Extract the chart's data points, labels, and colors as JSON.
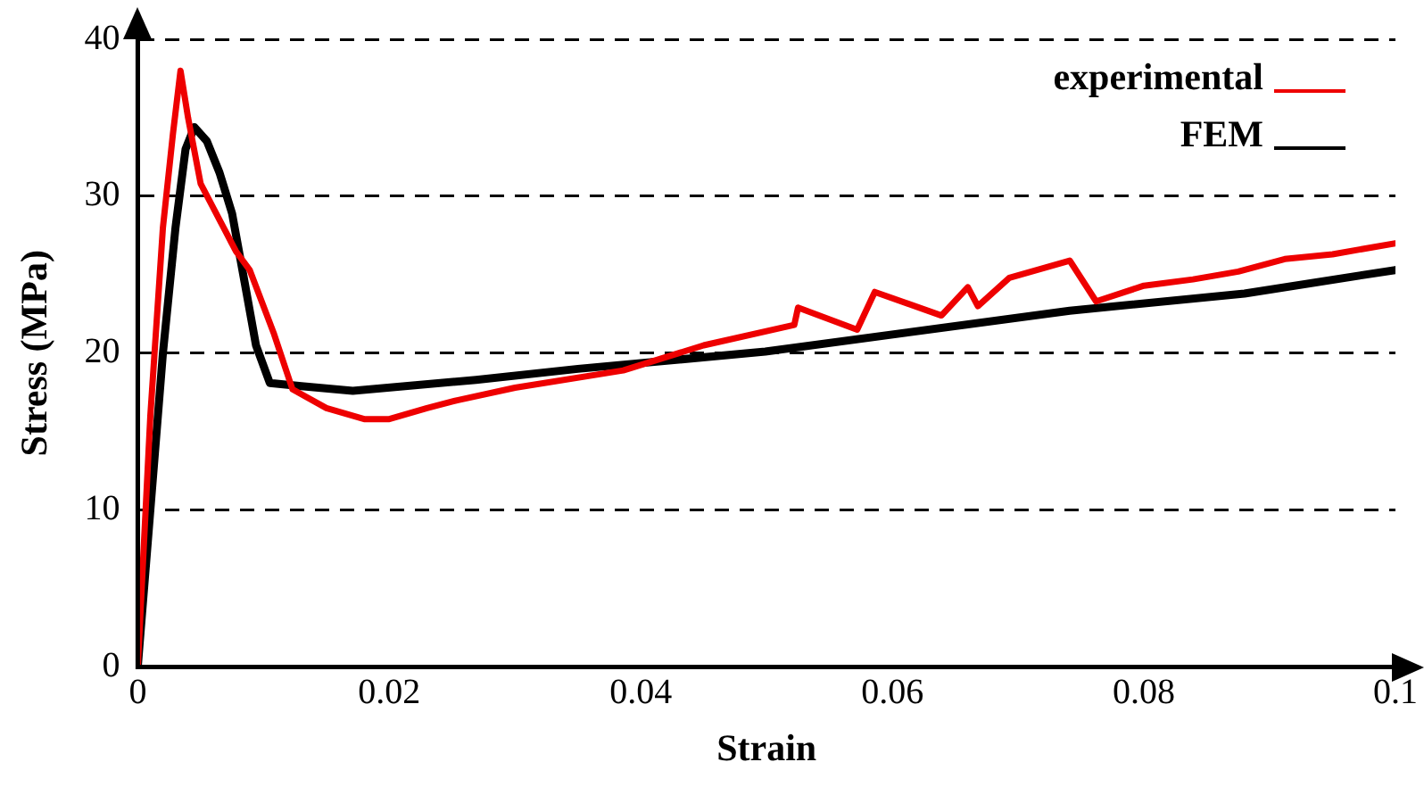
{
  "chart_data": {
    "type": "line",
    "xlabel": "Strain",
    "ylabel": "Stress (MPa)",
    "xlim": [
      0,
      0.1
    ],
    "ylim": [
      0,
      40
    ],
    "xticks": [
      0,
      0.02,
      0.04,
      0.06,
      0.08,
      0.1
    ],
    "yticks": [
      0,
      10,
      20,
      30,
      40
    ],
    "grid": "y",
    "legend": "top right",
    "marker": "none",
    "line_style": "solid",
    "series": [
      {
        "name": "experimental",
        "color": "#ee0000",
        "x": [
          0,
          0.001,
          0.002,
          0.0028,
          0.0034,
          0.004,
          0.005,
          0.0065,
          0.0078,
          0.0089,
          0.0108,
          0.0123,
          0.015,
          0.018,
          0.02,
          0.023,
          0.0254,
          0.03,
          0.0386,
          0.045,
          0.0522,
          0.0525,
          0.0572,
          0.0586,
          0.0639,
          0.066,
          0.0668,
          0.0693,
          0.0741,
          0.0762,
          0.08,
          0.0839,
          0.0875,
          0.0912,
          0.095,
          0.1
        ],
        "values": [
          0,
          16,
          28,
          34,
          38,
          35,
          30.8,
          28.5,
          26.5,
          25.3,
          21.3,
          17.7,
          16.5,
          15.8,
          15.8,
          16.5,
          17,
          17.8,
          18.9,
          20.5,
          21.8,
          22.9,
          21.5,
          23.9,
          22.4,
          24.2,
          23,
          24.8,
          25.9,
          23.3,
          24.3,
          24.7,
          25.2,
          26,
          26.3,
          27
        ]
      },
      {
        "name": "FEM",
        "color": "#000000",
        "x": [
          0,
          0.001,
          0.002,
          0.003,
          0.0038,
          0.0045,
          0.0055,
          0.0065,
          0.0075,
          0.0085,
          0.0094,
          0.0105,
          0.013,
          0.0171,
          0.0269,
          0.035,
          0.0499,
          0.0741,
          0.088,
          0.1
        ],
        "values": [
          0,
          10,
          20,
          28,
          33,
          34.4,
          33.5,
          31.5,
          28.9,
          24.5,
          20.5,
          18.1,
          17.9,
          17.6,
          18.3,
          19,
          20.1,
          22.7,
          23.8,
          25.3
        ]
      }
    ]
  }
}
